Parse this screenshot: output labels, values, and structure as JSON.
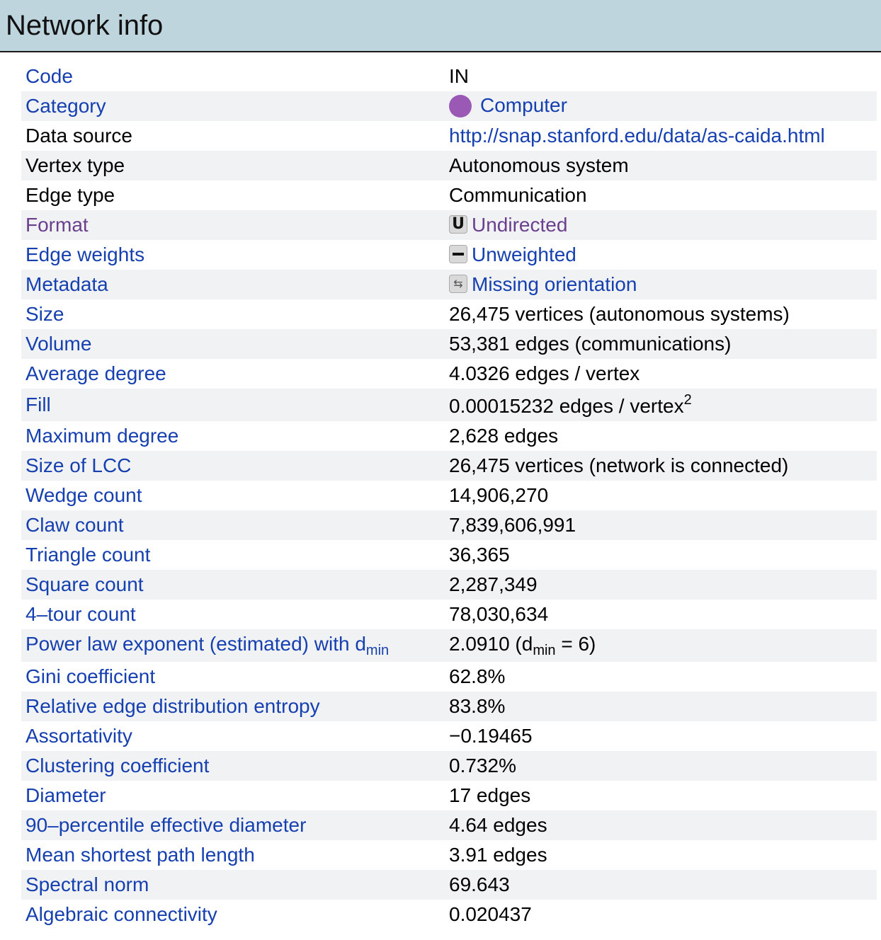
{
  "header": {
    "title": "Network info"
  },
  "rows": {
    "code": {
      "label": "Code",
      "value": "IN"
    },
    "category": {
      "label": "Category",
      "value": "Computer",
      "icon": "purple-dot-icon",
      "icon_color": "#9b59b6"
    },
    "data_source": {
      "label": "Data source",
      "value": "http://snap.stanford.edu/data/as-caida.html"
    },
    "vertex_type": {
      "label": "Vertex type",
      "value": "Autonomous system"
    },
    "edge_type": {
      "label": "Edge type",
      "value": "Communication"
    },
    "format": {
      "label": "Format",
      "value": "Undirected",
      "icon_glyph": "U"
    },
    "edge_weights": {
      "label": "Edge weights",
      "value": "Unweighted"
    },
    "metadata": {
      "label": "Metadata",
      "value": "Missing orientation",
      "icon_glyph": "⇆"
    },
    "size": {
      "label": "Size",
      "value": "26,475 vertices (autonomous systems)"
    },
    "volume": {
      "label": "Volume",
      "value": "53,381 edges (communications)"
    },
    "average_degree": {
      "label": "Average degree",
      "value": "4.0326 edges / vertex"
    },
    "fill": {
      "label": "Fill",
      "value": "0.00015232 edges / vertex",
      "sup": "2"
    },
    "maximum_degree": {
      "label": "Maximum degree",
      "value": "2,628 edges"
    },
    "size_of_lcc": {
      "label": "Size of LCC",
      "value": "26,475 vertices (network is connected)"
    },
    "wedge_count": {
      "label": "Wedge count",
      "value": "14,906,270"
    },
    "claw_count": {
      "label": "Claw count",
      "value": "7,839,606,991"
    },
    "triangle_count": {
      "label": "Triangle count",
      "value": "36,365"
    },
    "square_count": {
      "label": "Square count",
      "value": "2,287,349"
    },
    "four_tour_count": {
      "label": "4–tour count",
      "value": "78,030,634"
    },
    "power_law": {
      "label": "Power law exponent (estimated) with d",
      "label_sub": "min",
      "value_pre": "2.0910 (d",
      "value_sub": "min",
      "value_post": " = 6)"
    },
    "gini": {
      "label": "Gini coefficient",
      "value": "62.8%"
    },
    "entropy": {
      "label": "Relative edge distribution entropy",
      "value": "83.8%"
    },
    "assortativity": {
      "label": "Assortativity",
      "value": "−0.19465"
    },
    "clustering": {
      "label": "Clustering coefficient",
      "value": "0.732%"
    },
    "diameter": {
      "label": "Diameter",
      "value": "17 edges"
    },
    "effective_diameter": {
      "label": "90–percentile effective diameter",
      "value": "4.64 edges"
    },
    "mean_path": {
      "label": "Mean shortest path length",
      "value": "3.91 edges"
    },
    "spectral_norm": {
      "label": "Spectral norm",
      "value": "69.643"
    },
    "algebraic_connectivity": {
      "label": "Algebraic connectivity",
      "value": "0.020437"
    }
  }
}
